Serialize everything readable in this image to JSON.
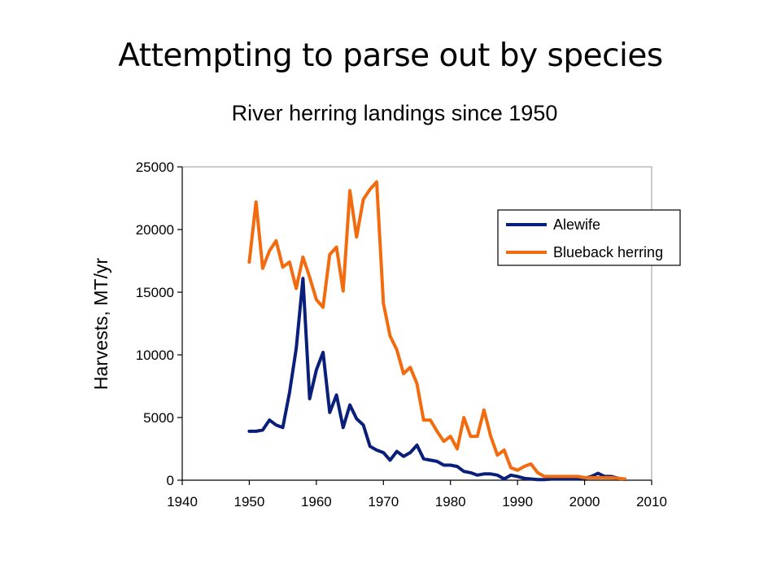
{
  "slide": {
    "title": "Attempting to parse out by species"
  },
  "chart_data": {
    "type": "line",
    "title": "River herring landings since 1950",
    "xlabel": "",
    "ylabel": "Harvests, MT/yr",
    "xlim": [
      1940,
      2010
    ],
    "ylim": [
      0,
      25000
    ],
    "x_ticks": [
      1940,
      1950,
      1960,
      1970,
      1980,
      1990,
      2000,
      2010
    ],
    "y_ticks": [
      0,
      5000,
      10000,
      15000,
      20000,
      25000
    ],
    "grid": false,
    "legend_position": "top-right",
    "series": [
      {
        "name": "Alewife",
        "color": "#0a1f7a",
        "x": [
          1950,
          1951,
          1952,
          1953,
          1954,
          1955,
          1956,
          1957,
          1958,
          1959,
          1960,
          1961,
          1962,
          1963,
          1964,
          1965,
          1966,
          1967,
          1968,
          1969,
          1970,
          1971,
          1972,
          1973,
          1974,
          1975,
          1976,
          1977,
          1978,
          1979,
          1980,
          1981,
          1982,
          1983,
          1984,
          1985,
          1986,
          1987,
          1988,
          1989,
          1990,
          1991,
          1992,
          1993,
          1994,
          1995,
          1996,
          1997,
          1998,
          1999,
          2000,
          2001,
          2002,
          2003,
          2004,
          2005,
          2006
        ],
        "values": [
          3900,
          3900,
          4000,
          4800,
          4400,
          4200,
          7000,
          10500,
          16100,
          6500,
          8800,
          10200,
          5400,
          6800,
          4200,
          6000,
          4900,
          4400,
          2700,
          2400,
          2200,
          1600,
          2300,
          1900,
          2200,
          2800,
          1700,
          1600,
          1500,
          1200,
          1200,
          1100,
          700,
          600,
          400,
          500,
          500,
          400,
          100,
          400,
          300,
          150,
          100,
          50,
          50,
          100,
          100,
          100,
          100,
          100,
          150,
          300,
          550,
          300,
          300,
          150,
          50
        ]
      },
      {
        "name": "Blueback herring",
        "color": "#f26b0f",
        "x": [
          1950,
          1951,
          1952,
          1953,
          1954,
          1955,
          1956,
          1957,
          1958,
          1959,
          1960,
          1961,
          1962,
          1963,
          1964,
          1965,
          1966,
          1967,
          1968,
          1969,
          1970,
          1971,
          1972,
          1973,
          1974,
          1975,
          1976,
          1977,
          1978,
          1979,
          1980,
          1981,
          1982,
          1983,
          1984,
          1985,
          1986,
          1987,
          1988,
          1989,
          1990,
          1991,
          1992,
          1993,
          1994,
          1995,
          1996,
          1997,
          1998,
          1999,
          2000,
          2001,
          2002,
          2003,
          2004,
          2005,
          2006
        ],
        "values": [
          17400,
          22200,
          16900,
          18300,
          19100,
          17000,
          17400,
          15300,
          17800,
          16200,
          14400,
          13800,
          18000,
          18600,
          15100,
          23100,
          19400,
          22400,
          23200,
          23800,
          14100,
          11500,
          10400,
          8500,
          9000,
          7700,
          4800,
          4800,
          3900,
          3100,
          3500,
          2500,
          5000,
          3500,
          3500,
          5600,
          3500,
          2000,
          2400,
          1000,
          800,
          1100,
          1300,
          600,
          300,
          300,
          300,
          300,
          300,
          300,
          200,
          200,
          200,
          200,
          200,
          150,
          100
        ]
      }
    ]
  }
}
